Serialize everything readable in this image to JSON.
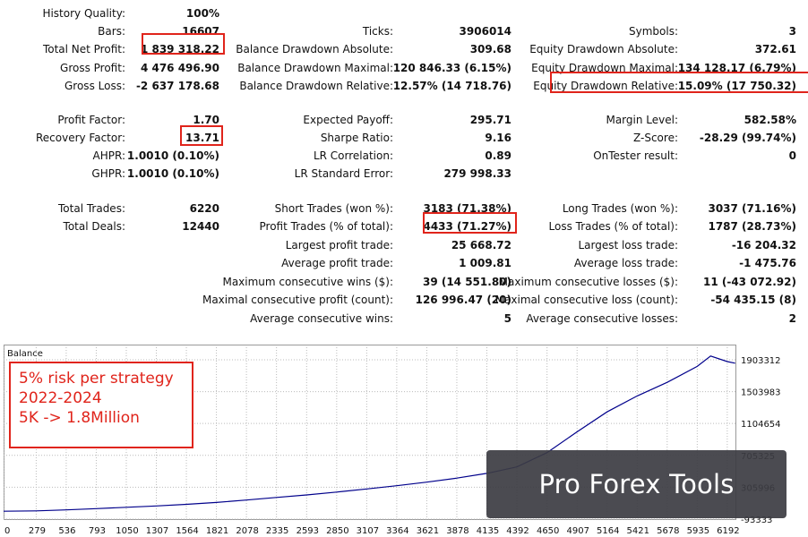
{
  "stats": {
    "history_quality": {
      "label": "History Quality:",
      "value": "100%"
    },
    "bars": {
      "label": "Bars:",
      "value": "16607"
    },
    "ticks": {
      "label": "Ticks:",
      "value": "3906014"
    },
    "symbols": {
      "label": "Symbols:",
      "value": "3"
    },
    "total_net_profit": {
      "label": "Total Net Profit:",
      "value": "1 839 318.22"
    },
    "balance_dd_abs": {
      "label": "Balance Drawdown Absolute:",
      "value": "309.68"
    },
    "equity_dd_abs": {
      "label": "Equity Drawdown Absolute:",
      "value": "372.61"
    },
    "gross_profit": {
      "label": "Gross Profit:",
      "value": "4 476 496.90"
    },
    "balance_dd_max": {
      "label": "Balance Drawdown Maximal:",
      "value": "120 846.33 (6.15%)"
    },
    "equity_dd_max": {
      "label": "Equity Drawdown Maximal:",
      "value": "134 128.17 (6.79%)"
    },
    "gross_loss": {
      "label": "Gross Loss:",
      "value": "-2 637 178.68"
    },
    "balance_dd_rel": {
      "label": "Balance Drawdown Relative:",
      "value": "12.57% (14 718.76)"
    },
    "equity_dd_rel": {
      "label": "Equity Drawdown Relative:",
      "value": "15.09% (17 750.32)"
    },
    "profit_factor": {
      "label": "Profit Factor:",
      "value": "1.70"
    },
    "expected_payoff": {
      "label": "Expected Payoff:",
      "value": "295.71"
    },
    "margin_level": {
      "label": "Margin Level:",
      "value": "582.58%"
    },
    "recovery_factor": {
      "label": "Recovery Factor:",
      "value": "13.71"
    },
    "sharpe_ratio": {
      "label": "Sharpe Ratio:",
      "value": "9.16"
    },
    "z_score": {
      "label": "Z-Score:",
      "value": "-28.29 (99.74%)"
    },
    "ahpr": {
      "label": "AHPR:",
      "value": "1.0010 (0.10%)"
    },
    "lr_correlation": {
      "label": "LR Correlation:",
      "value": "0.89"
    },
    "ontester": {
      "label": "OnTester result:",
      "value": "0"
    },
    "ghpr": {
      "label": "GHPR:",
      "value": "1.0010 (0.10%)"
    },
    "lr_std_error": {
      "label": "LR Standard Error:",
      "value": "279 998.33"
    },
    "total_trades": {
      "label": "Total Trades:",
      "value": "6220"
    },
    "short_trades": {
      "label": "Short Trades (won %):",
      "value": "3183 (71.38%)"
    },
    "long_trades": {
      "label": "Long Trades (won %):",
      "value": "3037 (71.16%)"
    },
    "total_deals": {
      "label": "Total Deals:",
      "value": "12440"
    },
    "profit_trades": {
      "label": "Profit Trades (% of total):",
      "value": "4433 (71.27%)"
    },
    "loss_trades": {
      "label": "Loss Trades (% of total):",
      "value": "1787 (28.73%)"
    },
    "largest_profit": {
      "label": "Largest profit trade:",
      "value": "25 668.72"
    },
    "largest_loss": {
      "label": "Largest loss trade:",
      "value": "-16 204.32"
    },
    "avg_profit": {
      "label": "Average profit trade:",
      "value": "1 009.81"
    },
    "avg_loss": {
      "label": "Average loss trade:",
      "value": "-1 475.76"
    },
    "max_consec_wins": {
      "label": "Maximum consecutive wins ($):",
      "value": "39 (14 551.80)"
    },
    "max_consec_losses": {
      "label": "Maximum consecutive losses ($):",
      "value": "11 (-43 072.92)"
    },
    "maximal_consec_profit": {
      "label": "Maximal consecutive profit (count):",
      "value": "126 996.47 (20)"
    },
    "maximal_consec_loss": {
      "label": "Maximal consecutive loss (count):",
      "value": "-54 435.15 (8)"
    },
    "avg_consec_wins": {
      "label": "Average consecutive wins:",
      "value": "5"
    },
    "avg_consec_losses": {
      "label": "Average consecutive losses:",
      "value": "2"
    }
  },
  "annotation": {
    "line1": "5% risk per strategy",
    "line2": "2022-2024",
    "line3": "5K -> 1.8Million"
  },
  "watermark": "Pro Forex Tools",
  "colors": {
    "highlight": "#e0241b",
    "balance_line": "#00008b",
    "watermark_bg": "#3c3c42"
  },
  "chart_data": {
    "type": "line",
    "title": "Balance",
    "series": [
      {
        "name": "",
        "x": [
          0,
          279,
          536,
          793,
          1050,
          1307,
          1564,
          1821,
          2078,
          2335,
          2593,
          2850,
          3107,
          3364,
          3621,
          3878,
          4135,
          4392,
          4650,
          4907,
          5164,
          5421,
          5678,
          5935,
          6050,
          6192,
          6260
        ],
        "y": [
          5000,
          10000,
          22000,
          38000,
          55000,
          72000,
          92000,
          115000,
          145000,
          178000,
          210000,
          245000,
          285000,
          325000,
          370000,
          420000,
          480000,
          560000,
          740000,
          1000000,
          1250000,
          1450000,
          1620000,
          1820000,
          1950000,
          1880000,
          1860000
        ]
      }
    ],
    "x_ticks": [
      "0",
      "279",
      "536",
      "793",
      "1050",
      "1307",
      "1564",
      "1821",
      "2078",
      "2335",
      "2593",
      "2850",
      "3107",
      "3364",
      "3621",
      "3878",
      "4135",
      "4392",
      "4650",
      "4907",
      "5164",
      "5421",
      "5678",
      "5935",
      "6192"
    ],
    "y_ticks": [
      "1903312",
      "1503983",
      "1104654",
      "705325",
      "305996",
      "-93333"
    ],
    "xlim": [
      0,
      6262
    ],
    "ylim": [
      -93333,
      2060000
    ],
    "grid": true
  }
}
